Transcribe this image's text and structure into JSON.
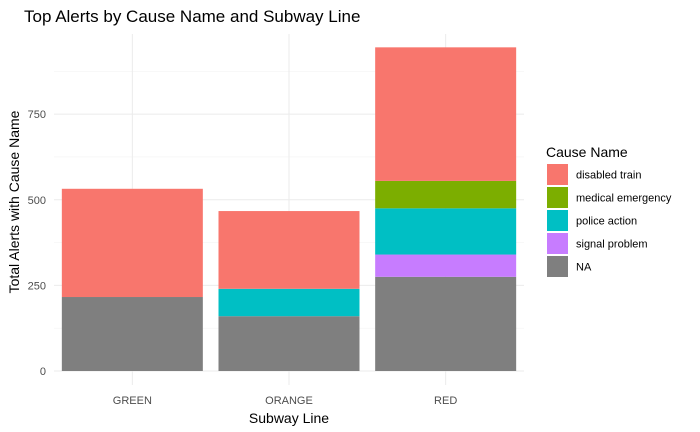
{
  "chart_data": {
    "type": "bar",
    "stacked": true,
    "title": "Top Alerts by Cause Name and Subway Line",
    "xlabel": "Subway Line",
    "ylabel": "Total Alerts with Cause Name",
    "categories": [
      "GREEN",
      "ORANGE",
      "RED"
    ],
    "ylim": [
      0,
      950
    ],
    "yticks": [
      0,
      250,
      500,
      750
    ],
    "legend_title": "Cause Name",
    "legend_position": "right",
    "grid": true,
    "series": [
      {
        "name": "disabled train",
        "color": "#F8766D",
        "values": [
          316,
          227,
          390
        ]
      },
      {
        "name": "medical emergency",
        "color": "#7CAE00",
        "values": [
          0,
          0,
          80
        ]
      },
      {
        "name": "police action",
        "color": "#00BFC4",
        "values": [
          0,
          80,
          135
        ]
      },
      {
        "name": "signal problem",
        "color": "#C77CFF",
        "values": [
          0,
          0,
          65
        ]
      },
      {
        "name": "NA",
        "color": "#7F7F7F",
        "values": [
          216,
          160,
          275
        ]
      }
    ],
    "stack_order_bottom_to_top": [
      "NA",
      "signal problem",
      "police action",
      "medical emergency",
      "disabled train"
    ]
  }
}
